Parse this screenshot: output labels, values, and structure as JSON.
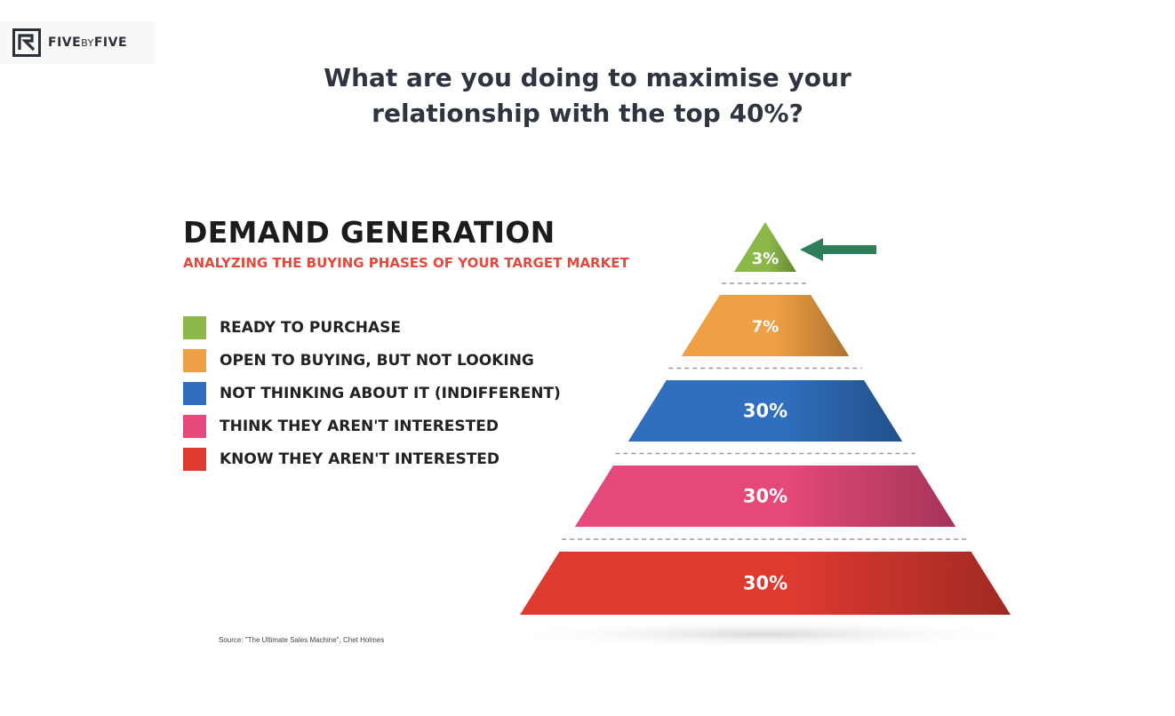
{
  "brand": {
    "name_part1": "FIVE",
    "name_part2": "BY",
    "name_part3": "FIVE"
  },
  "headline": {
    "line1": "What are you doing to maximise your",
    "line2": "relationship with the top 40%?"
  },
  "infographic": {
    "title": "DEMAND GENERATION",
    "subtitle": "ANALYZING THE BUYING PHASES OF YOUR TARGET MARKET",
    "source": "Source: \"The Ultimate Sales Machine\", Chet Holmes"
  },
  "legend": [
    {
      "label": "READY TO PURCHASE",
      "color": "#8cb84a"
    },
    {
      "label": "OPEN TO BUYING, BUT NOT LOOKING",
      "color": "#f0a044"
    },
    {
      "label": "NOT THINKING ABOUT IT (INDIFFERENT)",
      "color": "#2f6fbe"
    },
    {
      "label": "THINK THEY AREN'T INTERESTED",
      "color": "#e4497a"
    },
    {
      "label": "KNOW THEY AREN'T INTERESTED",
      "color": "#de3a30"
    }
  ],
  "pyramid": [
    {
      "value": "3%",
      "color": "#8cb84a"
    },
    {
      "value": "7%",
      "color": "#f0a044"
    },
    {
      "value": "30%",
      "color": "#2f6fbe"
    },
    {
      "value": "30%",
      "color": "#e4497a"
    },
    {
      "value": "30%",
      "color": "#de3a30"
    }
  ],
  "pointer": {
    "icon": "arrow-left-icon",
    "color": "#2e7d5b"
  }
}
